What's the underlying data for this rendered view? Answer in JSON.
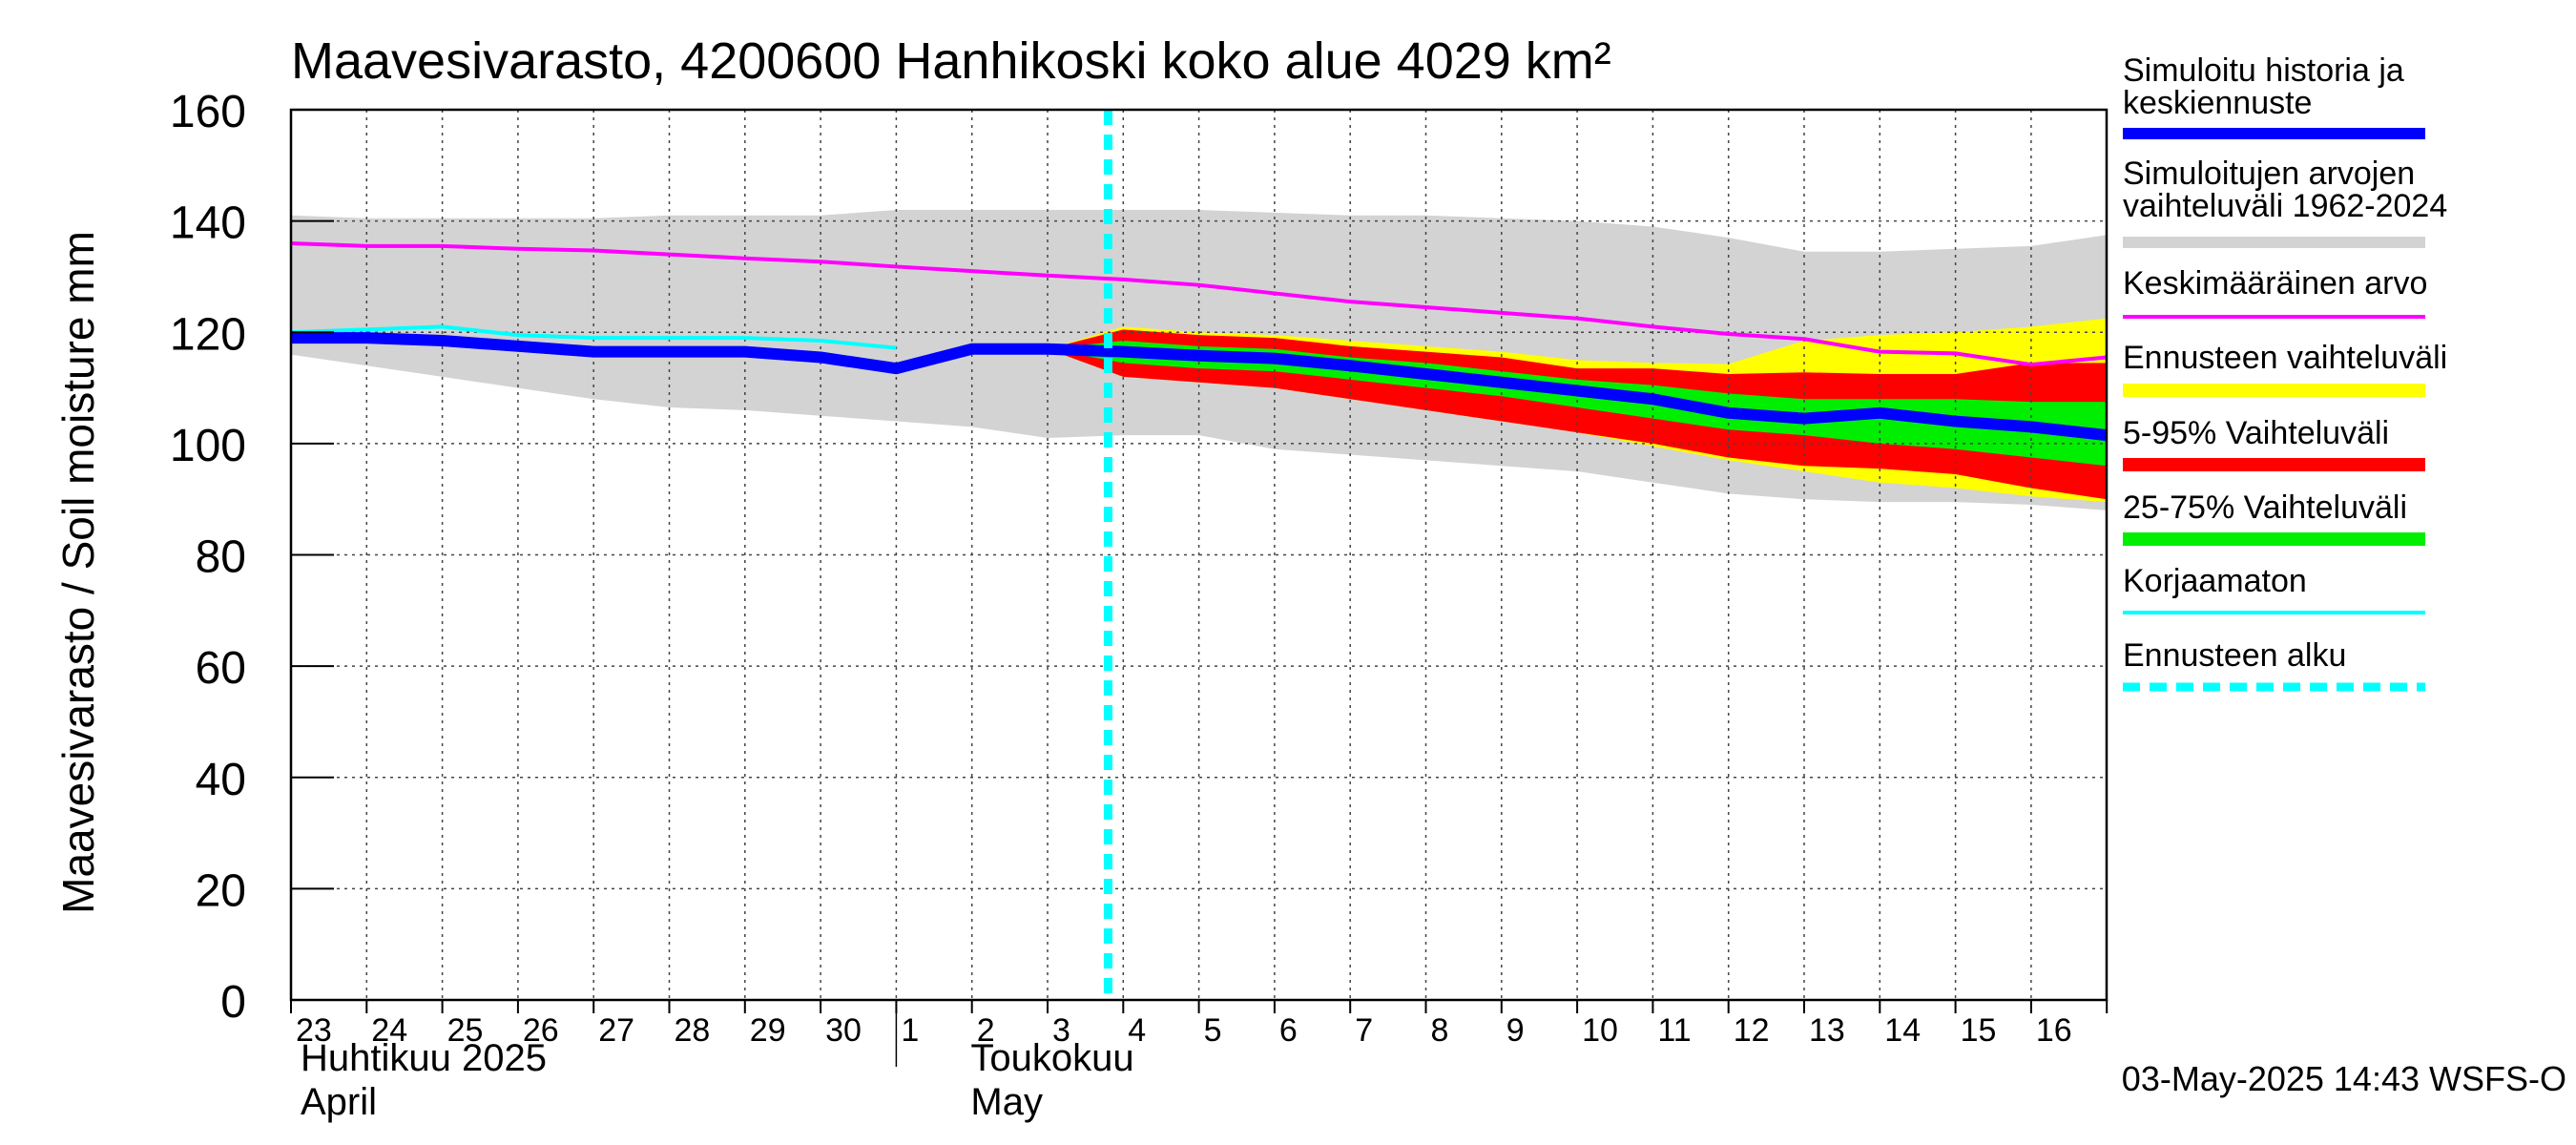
{
  "chart_data": {
    "type": "area",
    "title": "Maavesivarasto, 4200600 Hanhikoski koko alue 4029 km²",
    "ylabel": "Maavesivarasto / Soil moisture   mm",
    "xlabel": "",
    "ylim": [
      0,
      160
    ],
    "yticks": [
      0,
      20,
      40,
      60,
      80,
      100,
      120,
      140,
      160
    ],
    "grid": true,
    "x_days": [
      "23",
      "24",
      "25",
      "26",
      "27",
      "28",
      "29",
      "30",
      "1",
      "2",
      "3",
      "4",
      "5",
      "6",
      "7",
      "8",
      "9",
      "10",
      "11",
      "12",
      "13",
      "14",
      "15",
      "16"
    ],
    "month_labels": [
      {
        "fi": "Huhtikuu  2025",
        "en": "April",
        "start_day": "23"
      },
      {
        "fi": "Toukokuu",
        "en": "May",
        "start_day": "1"
      }
    ],
    "forecast_start_day": 10.8,
    "legend": [
      {
        "key": "sim",
        "label": "Simuloitu historia ja keskiennuste",
        "color": "#0000ff"
      },
      {
        "key": "range",
        "label": "Simuloitujen arvojen vaihteluväli 1962-2024",
        "color": "#d3d3d3"
      },
      {
        "key": "mean",
        "label": "Keskimääräinen arvo",
        "color": "#ff00ff"
      },
      {
        "key": "fc",
        "label": "Ennusteen vaihteluväli",
        "color": "#ffff00"
      },
      {
        "key": "p5_95",
        "label": "5-95% Vaihteluväli",
        "color": "#ff0000"
      },
      {
        "key": "p25_75",
        "label": "25-75% Vaihteluväli",
        "color": "#00ee00"
      },
      {
        "key": "raw",
        "label": "Korjaamaton",
        "color": "#00ffff"
      },
      {
        "key": "start",
        "label": "Ennusteen alku",
        "color": "#00ffff"
      }
    ],
    "series": [
      {
        "name": "hist_range_upper",
        "x": [
          0,
          1,
          2,
          3,
          4,
          5,
          6,
          7,
          8,
          9,
          10,
          11,
          12,
          13,
          14,
          15,
          16,
          17,
          18,
          19,
          20,
          21,
          22,
          23,
          24
        ],
        "values": [
          141,
          140.5,
          140.5,
          140.5,
          140.5,
          141,
          141,
          141,
          142,
          142,
          142,
          142,
          142,
          141.5,
          141,
          141,
          140.5,
          140,
          139,
          137,
          134.5,
          134.5,
          135,
          135.5,
          137.5
        ]
      },
      {
        "name": "hist_range_lower",
        "x": [
          0,
          1,
          2,
          3,
          4,
          5,
          6,
          7,
          8,
          9,
          10,
          11,
          12,
          13,
          14,
          15,
          16,
          17,
          18,
          19,
          20,
          21,
          22,
          23,
          24
        ],
        "values": [
          116,
          114,
          112,
          110,
          108,
          106.5,
          106,
          105,
          104,
          103,
          101,
          101.5,
          101.5,
          99,
          98,
          97,
          96,
          95,
          93,
          91,
          90,
          89.5,
          89.5,
          89,
          88
        ]
      },
      {
        "name": "Keskimääräinen arvo",
        "x": [
          0,
          1,
          2,
          3,
          4,
          5,
          6,
          7,
          8,
          9,
          10,
          11,
          12,
          13,
          14,
          15,
          16,
          17,
          18,
          19,
          20,
          21,
          22,
          23,
          24
        ],
        "values": [
          136,
          135.5,
          135.5,
          135,
          134.7,
          134,
          133.3,
          132.7,
          131.8,
          131,
          130.2,
          129.5,
          128.5,
          127,
          125.5,
          124.5,
          123.5,
          122.5,
          121,
          119.7,
          118.8,
          116.5,
          116.2,
          114.2,
          115.5
        ]
      },
      {
        "name": "Simuloitu historia ja keskiennuste",
        "x": [
          0,
          1,
          2,
          3,
          4,
          5,
          6,
          7,
          8,
          9,
          10,
          11,
          12,
          13,
          14,
          15,
          16,
          17,
          18,
          19,
          20,
          21,
          22,
          23,
          24
        ],
        "values": [
          119,
          119,
          118.5,
          117.5,
          116.5,
          116.5,
          116.5,
          115.5,
          113.5,
          117,
          117,
          116.5,
          115.8,
          115.3,
          114,
          112.5,
          111,
          109.5,
          108,
          105.5,
          104.5,
          105.5,
          104,
          103,
          101.5
        ]
      },
      {
        "name": "Korjaamaton",
        "x": [
          0,
          1,
          2,
          3,
          4,
          5,
          6,
          7,
          8
        ],
        "values": [
          120,
          120.5,
          121,
          119.5,
          119,
          119,
          119,
          118.5,
          117.2
        ]
      },
      {
        "name": "fc_yellow_upper",
        "x": [
          10,
          11,
          12,
          13,
          14,
          15,
          16,
          17,
          18,
          19,
          20,
          21,
          22,
          23,
          24
        ],
        "values": [
          117,
          121,
          120,
          119.5,
          118.5,
          117.5,
          116.5,
          115,
          114.5,
          114.3,
          118.5,
          119.5,
          120,
          121,
          122.5
        ]
      },
      {
        "name": "fc_yellow_lower",
        "x": [
          10,
          11,
          12,
          13,
          14,
          15,
          16,
          17,
          18,
          19,
          20,
          21,
          22,
          23,
          24
        ],
        "values": [
          117,
          112,
          111,
          110,
          108,
          106,
          104,
          102,
          99.5,
          97,
          95,
          93,
          92,
          90.5,
          89.5
        ]
      },
      {
        "name": "p5_95_upper",
        "x": [
          10,
          11,
          12,
          13,
          14,
          15,
          16,
          17,
          18,
          19,
          20,
          21,
          22,
          23,
          24
        ],
        "values": [
          117,
          120.5,
          119.5,
          119,
          117.5,
          116.5,
          115.5,
          113.5,
          113.5,
          112.5,
          112.8,
          112.5,
          112.5,
          114.5,
          114.5
        ]
      },
      {
        "name": "p5_95_lower",
        "x": [
          10,
          11,
          12,
          13,
          14,
          15,
          16,
          17,
          18,
          19,
          20,
          21,
          22,
          23,
          24
        ],
        "values": [
          117,
          112,
          111,
          110,
          108,
          106,
          104,
          102,
          100,
          97.5,
          96,
          95.5,
          94.5,
          92,
          90
        ]
      },
      {
        "name": "p25_75_upper",
        "x": [
          10,
          11,
          12,
          13,
          14,
          15,
          16,
          17,
          18,
          19,
          20,
          21,
          22,
          23,
          24
        ],
        "values": [
          117,
          118.5,
          117.5,
          117,
          115.5,
          114.5,
          113,
          111.5,
          110.5,
          109,
          108,
          108,
          108,
          107.5,
          107.5
        ]
      },
      {
        "name": "p25_75_lower",
        "x": [
          10,
          11,
          12,
          13,
          14,
          15,
          16,
          17,
          18,
          19,
          20,
          21,
          22,
          23,
          24
        ],
        "values": [
          117,
          114.5,
          113.5,
          113,
          111.5,
          110,
          108.5,
          106.5,
          104.5,
          102.5,
          101.5,
          100,
          99,
          97.5,
          96
        ]
      }
    ]
  },
  "footer": {
    "timestamp": "03-May-2025 14:43 WSFS-O"
  }
}
